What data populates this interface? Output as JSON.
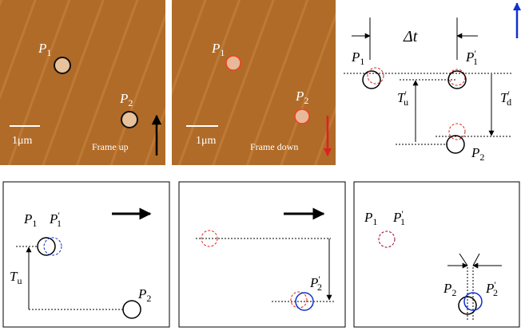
{
  "images": [
    {
      "labels": [
        {
          "main": "P",
          "sub": "1"
        },
        {
          "main": "P",
          "sub": "2"
        }
      ],
      "scale": "1μm",
      "caption": "Frame up"
    },
    {
      "labels": [
        {
          "main": "P",
          "sub": "1"
        },
        {
          "main": "P",
          "sub": "2"
        }
      ],
      "scale": "1μm",
      "caption": "Frame down"
    }
  ],
  "timing_diagram": {
    "delta": "Δt",
    "labels": [
      {
        "main": "P",
        "sub": "1"
      },
      {
        "main": "P",
        "prime": "′",
        "sub": "1"
      },
      {
        "main": "T",
        "prime": "′",
        "sub": "u"
      },
      {
        "main": "T",
        "prime": "′",
        "sub": "d"
      },
      {
        "main": "P",
        "sub": "2"
      }
    ]
  },
  "panels": [
    {
      "labels": [
        {
          "main": "P",
          "sub": "1"
        },
        {
          "main": "P",
          "prime": "′",
          "sub": "1"
        },
        {
          "main": "T",
          "sub": "u"
        },
        {
          "main": "P",
          "sub": "2"
        }
      ]
    },
    {
      "labels": [
        {
          "main": "P",
          "prime": "′",
          "sub": "2"
        }
      ]
    },
    {
      "labels": [
        {
          "main": "P",
          "sub": "1"
        },
        {
          "main": "P",
          "prime": "′",
          "sub": "1"
        },
        {
          "main": "P",
          "sub": "2"
        },
        {
          "main": "P",
          "prime": "′",
          "sub": "2"
        }
      ]
    }
  ]
}
